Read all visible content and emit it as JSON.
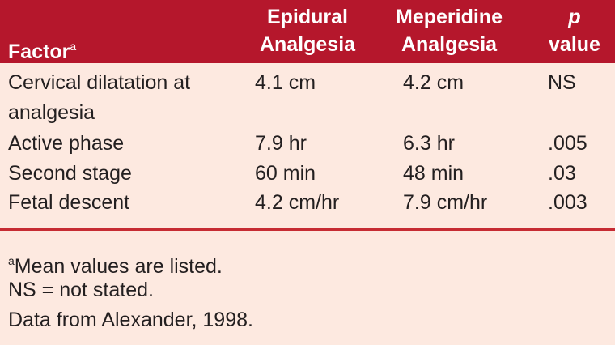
{
  "table": {
    "header": [
      {
        "text": "Factor",
        "sup": "a"
      },
      {
        "lines": [
          "Epidural",
          "Analgesia"
        ]
      },
      {
        "lines": [
          "Meperidine",
          "Analgesia"
        ]
      },
      {
        "lines": [
          "p",
          "value"
        ]
      }
    ],
    "rows": [
      [
        "Cervical dilatation at analgesia",
        "4.1 cm",
        "4.2 cm",
        "NS"
      ],
      [
        "Active phase",
        "7.9 hr",
        "6.3 hr",
        ".005"
      ],
      [
        "Second stage",
        "60 min",
        "48 min",
        ".03"
      ],
      [
        "Fetal descent",
        "4.2 cm/hr",
        "7.9 cm/hr",
        ".003"
      ]
    ]
  },
  "footnotes": [
    {
      "sup": "a",
      "text": "Mean values are listed."
    },
    "NS = not stated.",
    "Data from Alexander, 1998."
  ]
}
